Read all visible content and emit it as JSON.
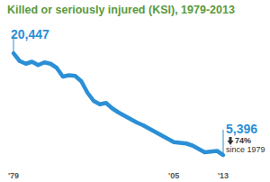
{
  "chart_data": {
    "type": "line",
    "title": "Killed or seriously injured (KSI), 1979-2013",
    "x": [
      1979,
      1980,
      1981,
      1982,
      1983,
      1984,
      1985,
      1986,
      1987,
      1988,
      1989,
      1990,
      1991,
      1992,
      1993,
      1994,
      1995,
      1996,
      1997,
      1998,
      1999,
      2000,
      2001,
      2002,
      2003,
      2004,
      2005,
      2006,
      2007,
      2008,
      2009,
      2010,
      2011,
      2012,
      2013
    ],
    "values": [
      20447,
      19300,
      18900,
      19200,
      18700,
      19100,
      18900,
      18300,
      17000,
      17200,
      17100,
      16300,
      14600,
      13400,
      12900,
      13100,
      12300,
      11700,
      11200,
      10700,
      10200,
      9800,
      9300,
      8800,
      8300,
      7800,
      7300,
      7200,
      7100,
      6800,
      6300,
      5800,
      5900,
      6000,
      5396
    ],
    "value_labels": [
      "20,447",
      null,
      null,
      null,
      null,
      null,
      null,
      null,
      null,
      null,
      null,
      null,
      null,
      null,
      null,
      null,
      null,
      null,
      null,
      null,
      null,
      null,
      null,
      null,
      null,
      null,
      null,
      null,
      null,
      null,
      null,
      null,
      null,
      null,
      "5,396"
    ],
    "data_labels": true,
    "annotations": [
      "74%",
      "since 1979"
    ],
    "color": "#2b8fd6",
    "xlim": [
      1979,
      2013
    ],
    "xticks": [
      {
        "value": 1979,
        "label": "'79"
      },
      {
        "value": 2005,
        "label": "'05"
      },
      {
        "value": 2013,
        "label": "'13"
      }
    ],
    "ylim": [
      3000,
      23000
    ],
    "tick_labels": "x",
    "grid": false
  }
}
